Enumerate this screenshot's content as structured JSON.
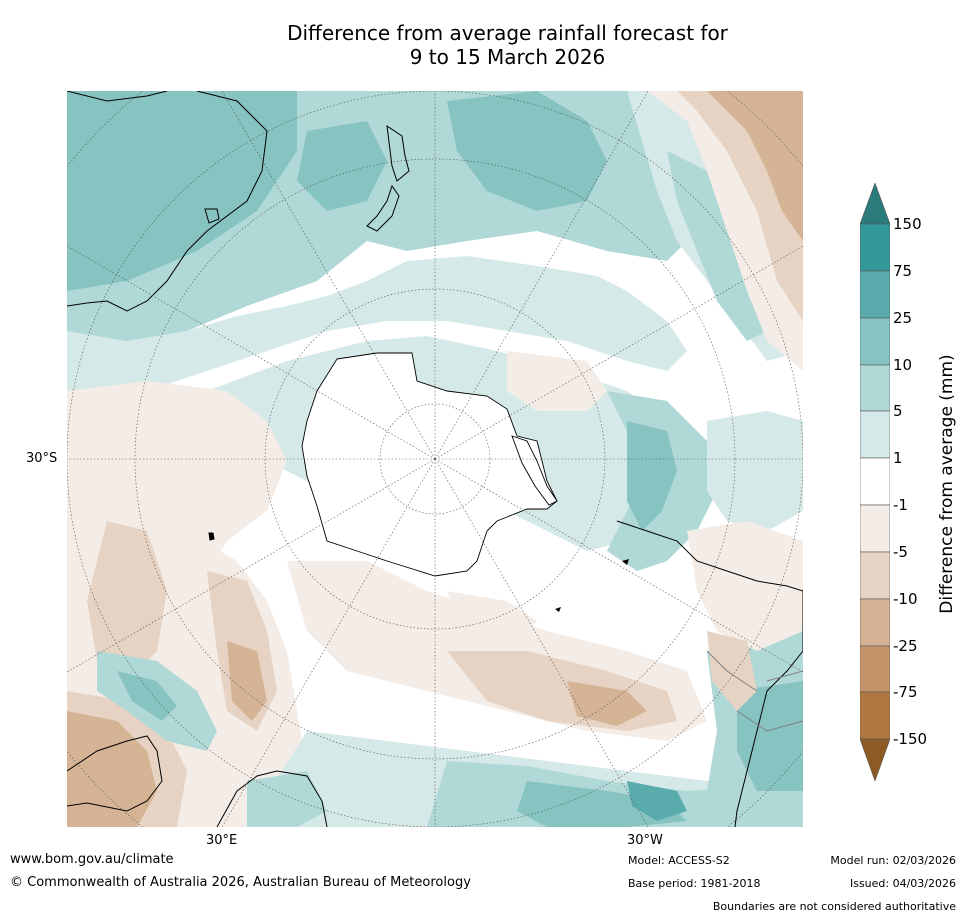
{
  "title_line1": "Difference from average rainfall forecast for",
  "title_line2": "9 to 15 March 2026",
  "map": {
    "projection": "south-polar-stereographic",
    "lat_label": "30°S",
    "lon_labels": [
      "30°E",
      "30°W"
    ]
  },
  "legend": {
    "title": "Difference from average (mm)",
    "ticks": [
      "150",
      "75",
      "25",
      "10",
      "5",
      "1",
      "-1",
      "-5",
      "-10",
      "-25",
      "-75",
      "-150"
    ],
    "colors": {
      "above_150": "#2a7b7a",
      "75_150": "#33989a",
      "25_75": "#5aacac",
      "10_25": "#86c3c1",
      "5_10": "#b0d8d6",
      "1_5": "#d5e9e8",
      "neutral": "#ffffff",
      "m5_m1": "#f4ece6",
      "m10_m5": "#e6d3c3",
      "m25_m10": "#d5b395",
      "m75_m25": "#c3946a",
      "m150_m75": "#b07840",
      "below_m150": "#8c5a22"
    }
  },
  "footer": {
    "website": "www.bom.gov.au/climate",
    "copyright": "© Commonwealth of Australia 2026, Australian Bureau of Meteorology",
    "model": "Model: ACCESS-S2",
    "base_period": "Base period: 1981-2018",
    "model_run": "Model run: 02/03/2026",
    "issued": "Issued: 04/03/2026",
    "disclaimer": "Boundaries are not considered authoritative"
  }
}
